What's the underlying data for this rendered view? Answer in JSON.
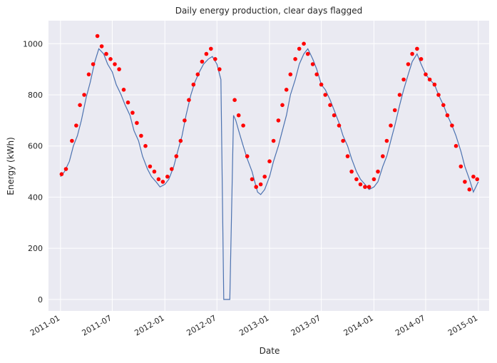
{
  "chart_data": {
    "type": "line",
    "title": "Daily energy production, clear days flagged",
    "xlabel": "Date",
    "ylabel": "Energy (kWh)",
    "xlim": [
      "2010-11-20",
      "2015-02-08"
    ],
    "ylim": [
      -45,
      1090
    ],
    "xticks": [
      "2011-01",
      "2011-07",
      "2012-01",
      "2012-07",
      "2013-01",
      "2013-07",
      "2014-01",
      "2014-07",
      "2015-01"
    ],
    "yticks": [
      0,
      200,
      400,
      600,
      800,
      1000
    ],
    "grid": true,
    "colors": {
      "background": "#eaeaf2",
      "grid": "#ffffff",
      "line": "#4c72b0",
      "flag": "#ff0000"
    },
    "series": [
      {
        "role": "daily energy",
        "kind": "line",
        "x": [
          "2011-01-01",
          "2011-01-15",
          "2011-02-01",
          "2011-02-15",
          "2011-03-01",
          "2011-03-15",
          "2011-04-01",
          "2011-04-15",
          "2011-05-01",
          "2011-05-15",
          "2011-06-01",
          "2011-06-15",
          "2011-07-01",
          "2011-07-15",
          "2011-08-01",
          "2011-08-15",
          "2011-09-01",
          "2011-09-15",
          "2011-10-01",
          "2011-10-15",
          "2011-11-01",
          "2011-11-15",
          "2011-12-01",
          "2011-12-15",
          "2012-01-01",
          "2012-01-15",
          "2012-02-01",
          "2012-02-15",
          "2012-03-01",
          "2012-03-15",
          "2012-04-01",
          "2012-04-15",
          "2012-05-01",
          "2012-05-15",
          "2012-06-01",
          "2012-06-15",
          "2012-07-01",
          "2012-07-15",
          "2012-07-25",
          "2012-08-05",
          "2012-08-15",
          "2012-08-28",
          "2012-09-05",
          "2012-09-15",
          "2012-10-01",
          "2012-10-15",
          "2012-11-01",
          "2012-11-15",
          "2012-11-20",
          "2012-12-01",
          "2012-12-15",
          "2013-01-01",
          "2013-01-15",
          "2013-02-01",
          "2013-02-15",
          "2013-03-01",
          "2013-03-15",
          "2013-04-01",
          "2013-04-15",
          "2013-05-01",
          "2013-05-15",
          "2013-06-01",
          "2013-06-15",
          "2013-07-01",
          "2013-07-15",
          "2013-08-01",
          "2013-08-15",
          "2013-09-01",
          "2013-09-15",
          "2013-10-01",
          "2013-10-15",
          "2013-11-01",
          "2013-11-15",
          "2013-12-01",
          "2013-12-15",
          "2014-01-01",
          "2014-01-15",
          "2014-02-01",
          "2014-02-15",
          "2014-03-01",
          "2014-03-15",
          "2014-04-01",
          "2014-04-15",
          "2014-05-01",
          "2014-05-15",
          "2014-06-01",
          "2014-06-15",
          "2014-07-01",
          "2014-07-15",
          "2014-08-01",
          "2014-08-15",
          "2014-09-01",
          "2014-09-15",
          "2014-10-01",
          "2014-10-15",
          "2014-11-01",
          "2014-11-15",
          "2014-12-01",
          "2014-12-15",
          "2015-01-01"
        ],
        "y": [
          480,
          500,
          540,
          600,
          640,
          700,
          790,
          850,
          930,
          980,
          960,
          920,
          890,
          840,
          800,
          760,
          720,
          660,
          620,
          560,
          510,
          480,
          460,
          440,
          450,
          470,
          520,
          580,
          640,
          720,
          800,
          850,
          890,
          920,
          940,
          950,
          920,
          860,
          0,
          0,
          0,
          720,
          700,
          660,
          600,
          550,
          500,
          440,
          420,
          410,
          430,
          480,
          540,
          600,
          660,
          720,
          800,
          860,
          920,
          960,
          980,
          940,
          900,
          840,
          820,
          780,
          740,
          690,
          640,
          600,
          550,
          500,
          470,
          450,
          430,
          440,
          460,
          520,
          560,
          620,
          680,
          760,
          820,
          880,
          930,
          960,
          920,
          880,
          860,
          840,
          800,
          760,
          720,
          680,
          640,
          580,
          520,
          470,
          420,
          460
        ]
      },
      {
        "role": "clear days flagged",
        "kind": "points",
        "x": [
          "2011-01-05",
          "2011-01-20",
          "2011-02-10",
          "2011-02-25",
          "2011-03-10",
          "2011-03-25",
          "2011-04-10",
          "2011-04-25",
          "2011-05-10",
          "2011-05-25",
          "2011-06-10",
          "2011-06-25",
          "2011-07-10",
          "2011-07-25",
          "2011-08-10",
          "2011-08-25",
          "2011-09-10",
          "2011-09-25",
          "2011-10-10",
          "2011-10-25",
          "2011-11-10",
          "2011-11-25",
          "2011-12-10",
          "2011-12-25",
          "2012-01-10",
          "2012-01-25",
          "2012-02-10",
          "2012-02-25",
          "2012-03-10",
          "2012-03-25",
          "2012-04-10",
          "2012-04-25",
          "2012-05-10",
          "2012-05-25",
          "2012-06-10",
          "2012-06-25",
          "2012-07-10",
          "2012-09-01",
          "2012-09-15",
          "2012-10-01",
          "2012-10-15",
          "2012-11-01",
          "2012-11-15",
          "2012-12-01",
          "2012-12-15",
          "2013-01-01",
          "2013-01-15",
          "2013-02-01",
          "2013-02-15",
          "2013-03-01",
          "2013-03-15",
          "2013-04-01",
          "2013-04-15",
          "2013-05-01",
          "2013-05-15",
          "2013-06-01",
          "2013-06-15",
          "2013-07-01",
          "2013-07-15",
          "2013-08-01",
          "2013-08-15",
          "2013-09-01",
          "2013-09-15",
          "2013-10-01",
          "2013-10-15",
          "2013-11-01",
          "2013-11-15",
          "2013-12-01",
          "2013-12-15",
          "2014-01-01",
          "2014-01-15",
          "2014-02-01",
          "2014-02-15",
          "2014-03-01",
          "2014-03-15",
          "2014-04-01",
          "2014-04-15",
          "2014-05-01",
          "2014-05-15",
          "2014-06-01",
          "2014-06-15",
          "2014-07-01",
          "2014-07-15",
          "2014-08-01",
          "2014-08-15",
          "2014-09-01",
          "2014-09-15",
          "2014-10-01",
          "2014-10-15",
          "2014-11-01",
          "2014-11-15",
          "2014-12-01",
          "2014-12-15",
          "2014-12-28"
        ],
        "y": [
          490,
          510,
          620,
          680,
          760,
          800,
          880,
          920,
          1030,
          990,
          960,
          940,
          920,
          900,
          820,
          770,
          730,
          690,
          640,
          600,
          520,
          500,
          470,
          460,
          480,
          510,
          560,
          620,
          700,
          780,
          840,
          880,
          930,
          960,
          980,
          940,
          900,
          780,
          720,
          680,
          560,
          470,
          440,
          450,
          480,
          540,
          620,
          700,
          760,
          820,
          880,
          940,
          980,
          1000,
          960,
          920,
          880,
          840,
          800,
          760,
          720,
          680,
          620,
          560,
          500,
          470,
          450,
          440,
          440,
          470,
          500,
          560,
          620,
          680,
          740,
          800,
          860,
          920,
          960,
          980,
          940,
          880,
          860,
          840,
          800,
          760,
          720,
          680,
          600,
          520,
          460,
          430,
          480,
          470
        ]
      }
    ]
  }
}
